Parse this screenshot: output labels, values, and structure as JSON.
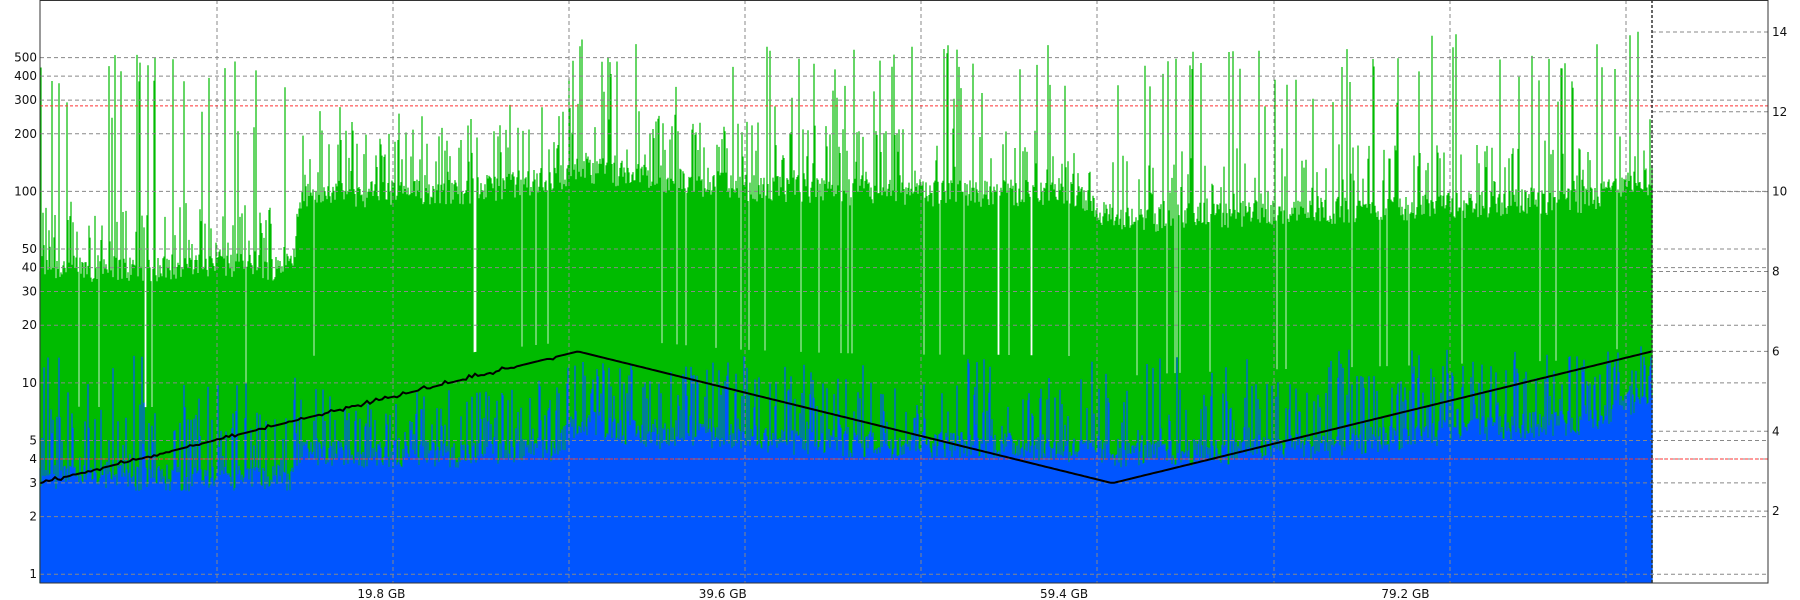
{
  "chart_data": {
    "type": "area",
    "x_unit": "GB",
    "x_range": [
      0,
      93.5
    ],
    "x_tick_labels": [
      "19.8 GB",
      "39.6 GB",
      "59.4 GB",
      "79.2 GB"
    ],
    "x_tick_values": [
      19.8,
      39.6,
      59.4,
      79.2
    ],
    "x_cursor": 93.5,
    "left_axis": {
      "scale": "log",
      "range": [
        0.9,
        1000
      ],
      "tick_labels": [
        "500",
        "400",
        "300",
        "200",
        "100",
        "50",
        "40",
        "30",
        "20",
        "10",
        "5",
        "4",
        "3",
        "2",
        "1"
      ]
    },
    "right_axis": {
      "scale": "linear",
      "range": [
        0.2,
        14.8
      ],
      "tick_labels": [
        "14",
        "12",
        "10",
        "8",
        "6",
        "4",
        "2"
      ]
    },
    "grid": true,
    "series": [
      {
        "color": "#00bb00",
        "axis": "left",
        "x": [
          0,
          5,
          10,
          14.8,
          15,
          20,
          25,
          30,
          31.2,
          35,
          40,
          45,
          50,
          55,
          60,
          62.5,
          65,
          70,
          75,
          80,
          85,
          90,
          91.5,
          93.5
        ],
        "baseline": [
          38,
          37,
          38,
          38,
          90,
          92,
          95,
          110,
          125,
          112,
          100,
          95,
          92,
          92,
          90,
          65,
          68,
          72,
          75,
          78,
          82,
          85,
          100,
          105
        ],
        "spike_peaks": [
          550,
          600,
          520,
          480,
          300,
          260,
          300,
          420,
          650,
          600,
          600,
          600,
          600,
          600,
          650,
          550,
          600,
          600,
          600,
          680,
          650,
          700,
          700,
          700
        ]
      },
      {
        "color": "#0055ff",
        "axis": "left",
        "x": [
          0,
          5,
          10,
          14.8,
          15,
          20,
          25,
          30,
          31.2,
          35,
          40,
          45,
          50,
          55,
          60,
          62.5,
          65,
          70,
          75,
          80,
          85,
          90,
          91.5,
          93.5
        ],
        "baseline": [
          3,
          3,
          3,
          3,
          4,
          4,
          4,
          4.2,
          6,
          5,
          5,
          4.5,
          4.5,
          4.5,
          4.2,
          4,
          4,
          4.2,
          4.5,
          5,
          5.5,
          6,
          7,
          8
        ],
        "spike_peaks": [
          14,
          15,
          12,
          12,
          7,
          8,
          9,
          11,
          15,
          12,
          14,
          13,
          12,
          14,
          15,
          10,
          14,
          14,
          15,
          16,
          15,
          16,
          16,
          16
        ]
      },
      {
        "color": "#000000",
        "axis": "right",
        "x": [
          0,
          31.2,
          62.2,
          93.5
        ],
        "y": [
          2.7,
          6.0,
          2.7,
          6.0
        ]
      }
    ],
    "reference_lines": [
      {
        "axis": "left",
        "value": 280,
        "color": "#ff3333"
      },
      {
        "axis": "left",
        "value": 4,
        "color": "#ff3333"
      }
    ],
    "legend": "none"
  }
}
